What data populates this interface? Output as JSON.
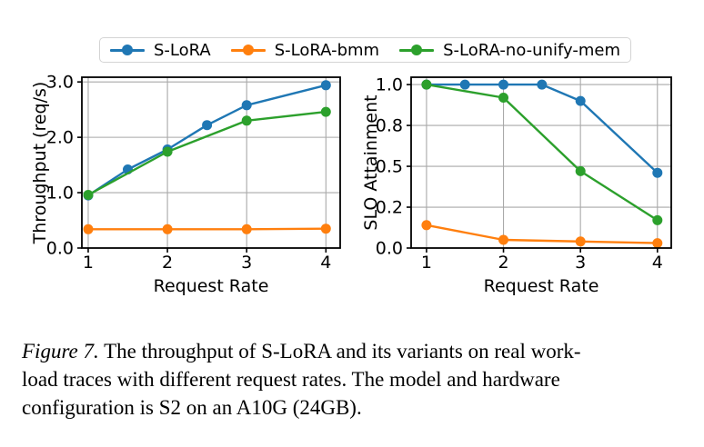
{
  "legend": {
    "items": [
      {
        "label": "S-LoRA",
        "color": "#1f77b4",
        "marker": "circle"
      },
      {
        "label": "S-LoRA-bmm",
        "color": "#ff7f0e",
        "marker": "circle"
      },
      {
        "label": "S-LoRA-no-unify-mem",
        "color": "#2ca02c",
        "marker": "circle"
      }
    ]
  },
  "colors": {
    "series_blue": "#1f77b4",
    "series_orange": "#ff7f0e",
    "series_green": "#2ca02c",
    "grid": "#a9a9a9",
    "spine": "#000000",
    "background": "#ffffff"
  },
  "chart_data": [
    {
      "type": "line",
      "title": "",
      "xlabel": "Request Rate",
      "ylabel": "Throughput (req/s)",
      "xlim": [
        0.92,
        4.18
      ],
      "ylim": [
        0,
        3.085
      ],
      "grid": true,
      "legend_position": "top-outside-shared",
      "xtick_values": [
        1,
        2,
        3,
        4
      ],
      "xtick_labels": [
        "1",
        "2",
        "3",
        "4"
      ],
      "ytick_values": [
        0,
        1,
        2,
        3
      ],
      "ytick_labels": [
        "0.0",
        "1.0",
        "2.0",
        "3.0"
      ],
      "series": [
        {
          "name": "S-LoRA",
          "color": "#1f77b4",
          "x": [
            1,
            1.5,
            2,
            2.5,
            3,
            4
          ],
          "y": [
            0.95,
            1.42,
            1.78,
            2.22,
            2.58,
            2.94
          ]
        },
        {
          "name": "S-LoRA-bmm",
          "color": "#ff7f0e",
          "x": [
            1,
            2,
            3,
            4
          ],
          "y": [
            0.34,
            0.34,
            0.34,
            0.35
          ]
        },
        {
          "name": "S-LoRA-no-unify-mem",
          "color": "#2ca02c",
          "x": [
            1,
            2,
            3,
            4
          ],
          "y": [
            0.96,
            1.74,
            2.3,
            2.46
          ]
        }
      ]
    },
    {
      "type": "line",
      "title": "",
      "xlabel": "Request Rate",
      "ylabel": "SLO Attainment",
      "xlim": [
        0.8,
        4.18
      ],
      "ylim": [
        0,
        1.045
      ],
      "grid": true,
      "legend_position": "top-outside-shared",
      "xtick_values": [
        1,
        2,
        3,
        4
      ],
      "xtick_labels": [
        "1",
        "2",
        "3",
        "4"
      ],
      "ytick_values": [
        0,
        0.25,
        0.5,
        0.75,
        1.0
      ],
      "ytick_labels": [
        "0.0",
        "0.2",
        "0.5",
        "0.8",
        "1.0"
      ],
      "series": [
        {
          "name": "S-LoRA",
          "color": "#1f77b4",
          "x": [
            1,
            1.5,
            2,
            2.5,
            3,
            4
          ],
          "y": [
            1.0,
            1.0,
            1.0,
            1.0,
            0.9,
            0.46
          ]
        },
        {
          "name": "S-LoRA-bmm",
          "color": "#ff7f0e",
          "x": [
            1,
            2,
            3,
            4
          ],
          "y": [
            0.14,
            0.05,
            0.04,
            0.03
          ]
        },
        {
          "name": "S-LoRA-no-unify-mem",
          "color": "#2ca02c",
          "x": [
            1,
            2,
            3,
            4
          ],
          "y": [
            1.0,
            0.92,
            0.47,
            0.17
          ]
        }
      ]
    }
  ],
  "caption": {
    "label": "Figure 7.",
    "line1": "The throughput of S-LoRA and its variants on real work-",
    "line2": "load traces with different request rates. The model and hardware",
    "line3": "configuration is S2 on an A10G (24GB)."
  }
}
